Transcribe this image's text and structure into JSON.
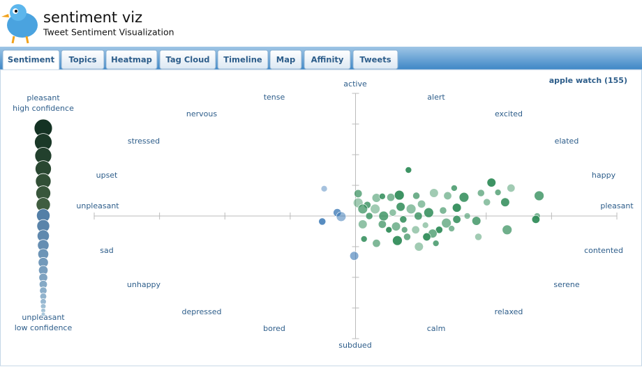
{
  "header": {
    "title": "sentiment viz",
    "subtitle": "Tweet Sentiment Visualization"
  },
  "tabs": [
    "Sentiment",
    "Topics",
    "Heatmap",
    "Tag Cloud",
    "Timeline",
    "Map",
    "Affinity",
    "Tweets"
  ],
  "active_tab": 0,
  "query": "apple watch (155)",
  "legend": {
    "top": [
      "pleasant",
      "high confidence"
    ],
    "bottom": [
      "unpleasant",
      "low confidence"
    ]
  },
  "emotions": [
    "active",
    "alert",
    "excited",
    "elated",
    "happy",
    "pleasant",
    "contented",
    "serene",
    "relaxed",
    "calm",
    "subdued",
    "bored",
    "depressed",
    "unhappy",
    "sad",
    "unpleasant",
    "upset",
    "stressed",
    "nervous",
    "tense"
  ],
  "chart_data": {
    "type": "scatter",
    "xlim": [
      1,
      9
    ],
    "ylim": [
      1,
      9
    ],
    "xticks": [
      1,
      2,
      3,
      4,
      5,
      6,
      7,
      8,
      9
    ],
    "yticks": [
      1,
      2,
      3,
      4,
      5,
      6,
      7,
      8,
      9
    ],
    "colors": {
      "pleasant": "#2e8b57",
      "unpleasant": "#3a78b5"
    },
    "x": [
      4.52,
      4.72,
      4.78,
      4.49,
      4.98,
      5.81,
      5.04,
      5.04,
      5.18,
      5.32,
      5.41,
      5.54,
      5.67,
      5.93,
      6.2,
      6.51,
      6.41,
      6.66,
      6.92,
      7.08,
      7.18,
      7.38,
      7.81,
      7.01,
      7.29,
      7.78,
      7.76,
      7.32,
      6.88,
      6.85,
      6.71,
      6.55,
      6.39,
      6.28,
      6.18,
      6.07,
      5.96,
      5.85,
      5.73,
      5.62,
      5.51,
      5.41,
      5.3,
      5.21,
      5.11,
      5.13,
      5.32,
      5.64,
      5.79,
      5.97,
      6.23,
      6.01,
      6.12,
      6.34,
      6.55,
      5.75,
      5.92,
      5.43,
      5.57,
      5.69,
      6.47,
      6.09,
      5.11
    ],
    "y": [
      5.89,
      5.11,
      4.98,
      4.82,
      3.7,
      6.5,
      5.73,
      5.43,
      5.36,
      5.59,
      5.64,
      5.61,
      5.68,
      5.66,
      5.75,
      5.91,
      5.66,
      5.61,
      5.75,
      6.09,
      5.77,
      5.91,
      5.66,
      5.45,
      5.45,
      5.0,
      4.89,
      4.55,
      4.32,
      4.84,
      5.0,
      4.89,
      4.77,
      4.55,
      4.43,
      4.7,
      5.0,
      5.23,
      4.89,
      4.66,
      4.55,
      4.73,
      5.23,
      5.0,
      4.73,
      4.25,
      4.11,
      4.2,
      4.32,
      4.0,
      4.11,
      5.39,
      5.11,
      5.18,
      5.27,
      4.55,
      4.55,
      5.0,
      5.11,
      5.3,
      4.59,
      4.32,
      5.23
    ]
  }
}
